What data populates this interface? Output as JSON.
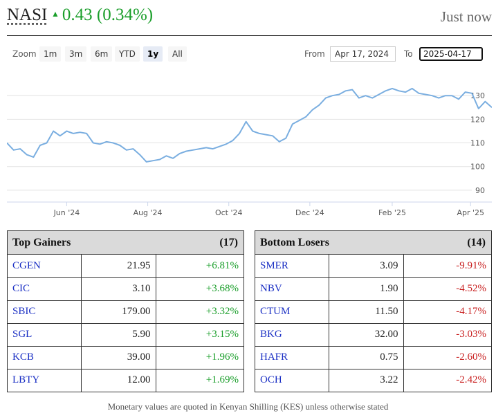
{
  "header": {
    "ticker": "NASI",
    "change": "0.43 (0.34%)",
    "updated": "Just now"
  },
  "controls": {
    "zoom_label": "Zoom",
    "zoom_buttons": [
      "1m",
      "3m",
      "6m",
      "YTD",
      "1y",
      "All"
    ],
    "active_zoom": "1y",
    "from_label": "From",
    "from_value": "Apr 17, 2024",
    "to_label": "To",
    "to_value": "2025-04-17"
  },
  "chart_data": {
    "type": "line",
    "x_labels": [
      "Jun '24",
      "Aug '24",
      "Oct '24",
      "Dec '24",
      "Feb '25",
      "Apr '25"
    ],
    "y_ticks": [
      90,
      100,
      110,
      120,
      130
    ],
    "ylim": [
      85,
      140
    ],
    "grid": true,
    "series": [
      {
        "color": "#7aaee0",
        "x": [
          "2024-04-17",
          "2024-04-22",
          "2024-04-27",
          "2024-05-02",
          "2024-05-07",
          "2024-05-12",
          "2024-05-17",
          "2024-05-22",
          "2024-05-27",
          "2024-06-01",
          "2024-06-06",
          "2024-06-11",
          "2024-06-16",
          "2024-06-21",
          "2024-06-26",
          "2024-07-01",
          "2024-07-06",
          "2024-07-11",
          "2024-07-16",
          "2024-07-21",
          "2024-07-26",
          "2024-07-31",
          "2024-08-05",
          "2024-08-10",
          "2024-08-15",
          "2024-08-20",
          "2024-08-25",
          "2024-08-30",
          "2024-09-04",
          "2024-09-09",
          "2024-09-14",
          "2024-09-19",
          "2024-09-24",
          "2024-09-29",
          "2024-10-04",
          "2024-10-09",
          "2024-10-14",
          "2024-10-19",
          "2024-10-24",
          "2024-10-29",
          "2024-11-03",
          "2024-11-08",
          "2024-11-13",
          "2024-11-18",
          "2024-11-23",
          "2024-11-28",
          "2024-12-03",
          "2024-12-08",
          "2024-12-13",
          "2024-12-18",
          "2024-12-23",
          "2024-12-28",
          "2025-01-02",
          "2025-01-07",
          "2025-01-12",
          "2025-01-17",
          "2025-01-22",
          "2025-01-27",
          "2025-02-01",
          "2025-02-06",
          "2025-02-11",
          "2025-02-16",
          "2025-02-21",
          "2025-02-26",
          "2025-03-03",
          "2025-03-08",
          "2025-03-13",
          "2025-03-18",
          "2025-03-23",
          "2025-03-28",
          "2025-04-02",
          "2025-04-07",
          "2025-04-12",
          "2025-04-17"
        ],
        "values": [
          110,
          107,
          107.5,
          105,
          104,
          109,
          110,
          115,
          113,
          115,
          114,
          114.5,
          114,
          110,
          109.5,
          110.5,
          110,
          109,
          107,
          107.5,
          105,
          102,
          102.5,
          103,
          104.5,
          103.5,
          105.5,
          106.5,
          107,
          107.5,
          108,
          107.5,
          108.5,
          109.5,
          111,
          114,
          119,
          115,
          114,
          113.5,
          113,
          110.5,
          112,
          118,
          119.5,
          121,
          124,
          126,
          129,
          130,
          130.5,
          132,
          132.5,
          129,
          130,
          129,
          130.5,
          132,
          133,
          132,
          131.5,
          133,
          131,
          130.5,
          130,
          129,
          130,
          130,
          128.5,
          131.5,
          131,
          124.5,
          127.5,
          125
        ]
      }
    ]
  },
  "gainers": {
    "title": "Top Gainers",
    "count": "(17)",
    "rows": [
      {
        "symbol": "CGEN",
        "price": "21.95",
        "change": "+6.81%"
      },
      {
        "symbol": "CIC",
        "price": "3.10",
        "change": "+3.68%"
      },
      {
        "symbol": "SBIC",
        "price": "179.00",
        "change": "+3.32%"
      },
      {
        "symbol": "SGL",
        "price": "5.90",
        "change": "+3.15%"
      },
      {
        "symbol": "KCB",
        "price": "39.00",
        "change": "+1.96%"
      },
      {
        "symbol": "LBTY",
        "price": "12.00",
        "change": "+1.69%"
      }
    ]
  },
  "losers": {
    "title": "Bottom Losers",
    "count": "(14)",
    "rows": [
      {
        "symbol": "SMER",
        "price": "3.09",
        "change": "-9.91%"
      },
      {
        "symbol": "NBV",
        "price": "1.90",
        "change": "-4.52%"
      },
      {
        "symbol": "CTUM",
        "price": "11.50",
        "change": "-4.17%"
      },
      {
        "symbol": "BKG",
        "price": "32.00",
        "change": "-3.03%"
      },
      {
        "symbol": "HAFR",
        "price": "0.75",
        "change": "-2.60%"
      },
      {
        "symbol": "OCH",
        "price": "3.22",
        "change": "-2.42%"
      }
    ]
  },
  "footer": "Monetary values are quoted in Kenyan Shilling (KES) unless otherwise stated"
}
